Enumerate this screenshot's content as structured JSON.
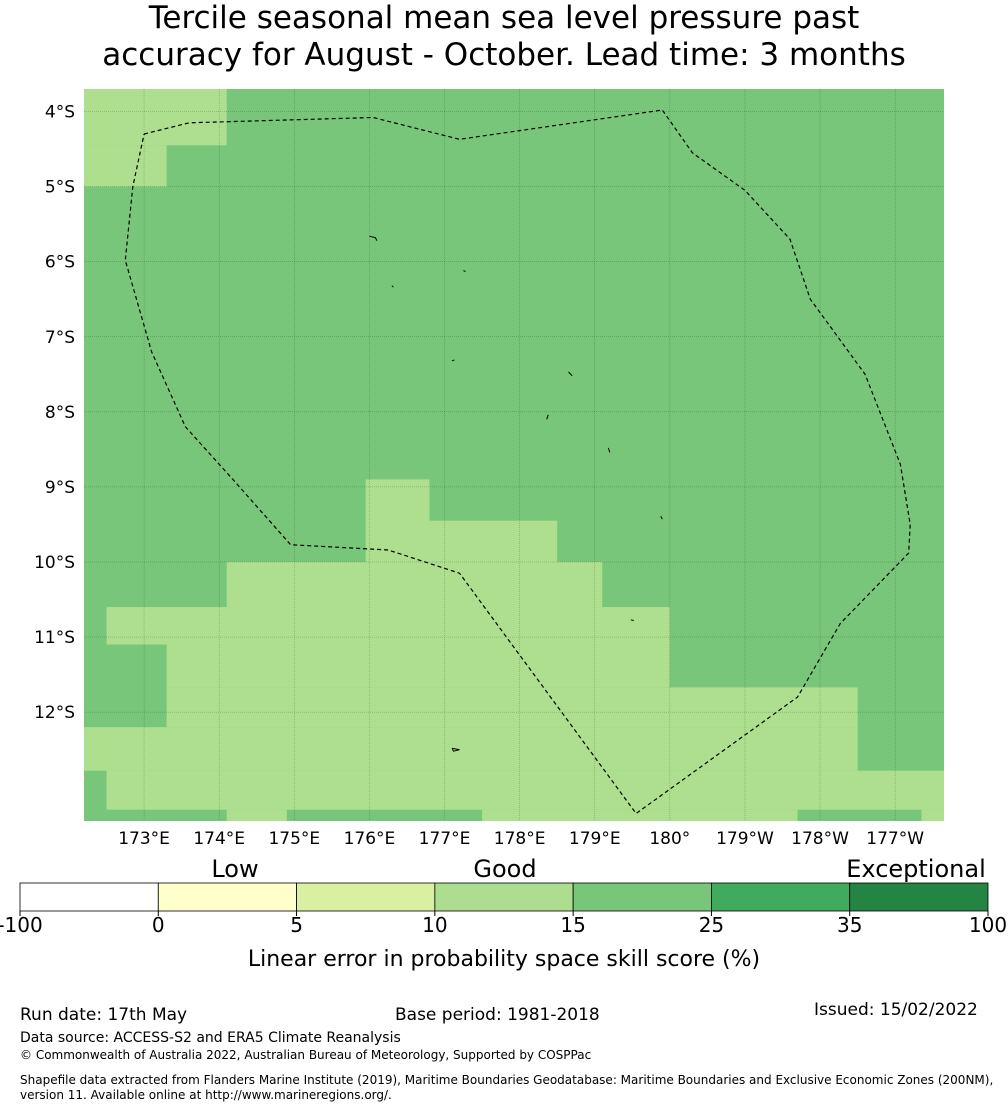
{
  "title": {
    "line1": "Tercile seasonal mean sea level pressure past",
    "line2": "accuracy for August - October. Lead time: 3 months"
  },
  "map": {
    "lat_labels": [
      "4°S",
      "5°S",
      "6°S",
      "7°S",
      "8°S",
      "9°S",
      "10°S",
      "11°S",
      "12°S"
    ],
    "lon_labels": [
      "173°E",
      "174°E",
      "175°E",
      "176°E",
      "177°E",
      "178°E",
      "179°E",
      "180°",
      "179°W",
      "178°W",
      "177°W"
    ],
    "extent": {
      "lon_min": 172.2,
      "lon_max": 183.65,
      "lat_top": -3.7,
      "lat_bottom": -13.45
    },
    "colors": {
      "class_10_15": "#addf8e",
      "class_15_25": "#78c679",
      "grid": "#000000",
      "boundary": "#000000"
    },
    "skill_class_rows": [
      "LLLLLLLLLLLLLLLLLLLLLLLLLLLLLLLLLLLLLLLLL",
      "LLLLLLLLLLLLLLLLLLLLLLLLLLLLLLLLLLLLLLLLL",
      "LLLLLLLLLLLLLLLLLLLLLLLLLLLLLLLLLLLLLLLLL",
      "LLLLLLLLLLLLLLLLLLLLLLLLLLLLLLLLLLLLLLLLL",
      "LLLLLLLLLLLLLLLLLLLLLLLLLLLLLLLLLLLLLLLLL",
      "LLLLLLLLLLLLLLLLLLLLLLLLLLLLLLLLLLLLLLLLL",
      "LLLLLLLLLLLLLLLLLLLLLLLLLLLLLLLLLLLLLLLLL",
      "LLLLLLLLLLLLLLLLLLLLLLLLLLLLLLLLLLLLLLLLL",
      "LLLLLLLLLLLLLLLLLLLLLLLLLLLLLLLLLLLLLLLLL",
      "LLLLLLLLLLLLLLLLLLLLLLLLLLLLLLLLLLLLLLLLL",
      "LLLLLLLLLLLLLLLLLLLLLLLLLLLLLLLLLLLLLLLLL",
      "LLLLLLLLLLLLLLLLLLLLLLLLLLLLLLLLLLLLLLLLL"
    ],
    "low_skill_patches": [
      {
        "lon": [
          172.2,
          174.1
        ],
        "lat": [
          -3.7,
          -4.45
        ]
      },
      {
        "lon": [
          172.2,
          173.3
        ],
        "lat": [
          -4.45,
          -5.0
        ]
      },
      {
        "lon": [
          175.95,
          176.8
        ],
        "lat": [
          -8.9,
          -10.0
        ]
      },
      {
        "lon": [
          176.8,
          178.5
        ],
        "lat": [
          -9.45,
          -10.0
        ]
      },
      {
        "lon": [
          174.1,
          179.1
        ],
        "lat": [
          -10.0,
          -10.6
        ]
      },
      {
        "lon": [
          172.5,
          180.0
        ],
        "lat": [
          -10.6,
          -11.1
        ]
      },
      {
        "lon": [
          173.3,
          180.0
        ],
        "lat": [
          -11.1,
          -11.67
        ]
      },
      {
        "lon": [
          173.3,
          182.5
        ],
        "lat": [
          -11.67,
          -12.2
        ]
      },
      {
        "lon": [
          172.2,
          182.5
        ],
        "lat": [
          -12.2,
          -12.78
        ]
      },
      {
        "lon": [
          172.5,
          183.65
        ],
        "lat": [
          -12.78,
          -13.3
        ]
      },
      {
        "lon": [
          174.1,
          174.9
        ],
        "lat": [
          -13.3,
          -13.45
        ]
      },
      {
        "lon": [
          177.5,
          181.7
        ],
        "lat": [
          -13.3,
          -13.45
        ]
      },
      {
        "lon": [
          183.35,
          183.65
        ],
        "lat": [
          -13.3,
          -13.45
        ]
      }
    ],
    "eez_boundary": [
      [
        173.0,
        -4.3
      ],
      [
        173.6,
        -4.15
      ],
      [
        176.05,
        -4.08
      ],
      [
        177.2,
        -4.37
      ],
      [
        179.9,
        -3.98
      ],
      [
        180.3,
        -4.55
      ],
      [
        181.0,
        -5.05
      ],
      [
        181.6,
        -5.7
      ],
      [
        181.87,
        -6.5
      ],
      [
        182.6,
        -7.5
      ],
      [
        183.07,
        -8.7
      ],
      [
        183.2,
        -9.5
      ],
      [
        183.18,
        -9.88
      ],
      [
        182.27,
        -10.82
      ],
      [
        181.7,
        -11.8
      ],
      [
        179.55,
        -13.35
      ],
      [
        177.2,
        -10.15
      ],
      [
        176.25,
        -9.84
      ],
      [
        174.95,
        -9.77
      ],
      [
        174.2,
        -8.92
      ],
      [
        173.55,
        -8.2
      ],
      [
        173.1,
        -7.2
      ],
      [
        172.75,
        -5.98
      ],
      [
        172.85,
        -5.0
      ],
      [
        173.0,
        -4.3
      ]
    ],
    "islands": [
      [
        [
          176.0,
          -5.66
        ],
        [
          176.08,
          -5.68
        ],
        [
          176.1,
          -5.72
        ]
      ],
      [
        [
          177.25,
          -6.12
        ],
        [
          177.28,
          -6.13
        ]
      ],
      [
        [
          176.3,
          -6.32
        ],
        [
          176.32,
          -6.34
        ]
      ],
      [
        [
          177.1,
          -7.32
        ],
        [
          177.13,
          -7.31
        ]
      ],
      [
        [
          178.65,
          -7.47
        ],
        [
          178.7,
          -7.52
        ]
      ],
      [
        [
          178.38,
          -8.04
        ],
        [
          178.36,
          -8.1
        ]
      ],
      [
        [
          179.18,
          -8.48
        ],
        [
          179.2,
          -8.54
        ]
      ],
      [
        [
          179.88,
          -9.39
        ],
        [
          179.9,
          -9.43
        ]
      ],
      [
        [
          179.48,
          -10.77
        ],
        [
          179.52,
          -10.78
        ]
      ],
      [
        [
          177.1,
          -12.48
        ],
        [
          177.2,
          -12.5
        ],
        [
          177.12,
          -12.52
        ],
        [
          177.1,
          -12.48
        ]
      ]
    ]
  },
  "legend": {
    "low": "Low",
    "good": "Good",
    "exceptional": "Exceptional",
    "ticks": [
      "-100",
      "0",
      "5",
      "10",
      "15",
      "25",
      "35",
      "100"
    ],
    "colors": [
      "#ffffff",
      "#ffffcc",
      "#d9f0a3",
      "#addd8e",
      "#78c679",
      "#41ab5d",
      "#238443"
    ],
    "caption": "Linear error in probability space skill score (%)"
  },
  "footer": {
    "run_date": "Run date: 17th May",
    "base_period": "Base period: 1981-2018",
    "issued": "Issued: 15/02/2022",
    "data_source": "Data source: ACCESS-S2 and ERA5 Climate Reanalysis",
    "copyright": "© Commonwealth of Australia 2022, Australian Bureau of Meteorology, Supported by COSPPac",
    "shapefile_line1": "Shapefile data extracted from Flanders Marine Institute (2019), Maritime Boundaries Geodatabase: Maritime Boundaries and Exclusive Economic Zones (200NM),",
    "shapefile_line2": "version 11. Available online at http://www.marineregions.org/."
  }
}
